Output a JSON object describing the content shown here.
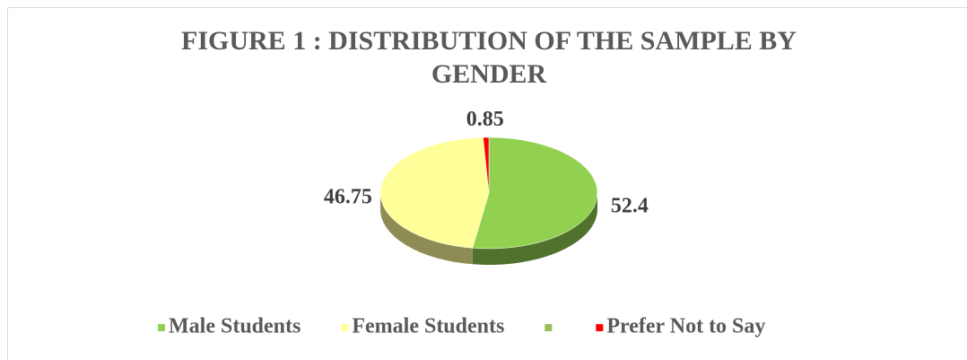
{
  "chart_data": {
    "type": "pie3d",
    "title": "FIGURE 1 : DISTRIBUTION OF THE SAMPLE BY GENDER",
    "categories": [
      "Male Students",
      "Female Students",
      null,
      "Prefer Not to Say"
    ],
    "values": [
      52.4,
      46.75,
      null,
      0.85
    ],
    "colors": [
      "#92d050",
      "#ffff99",
      "#9bbb59",
      "#ff0000"
    ],
    "legend": "bottom"
  }
}
